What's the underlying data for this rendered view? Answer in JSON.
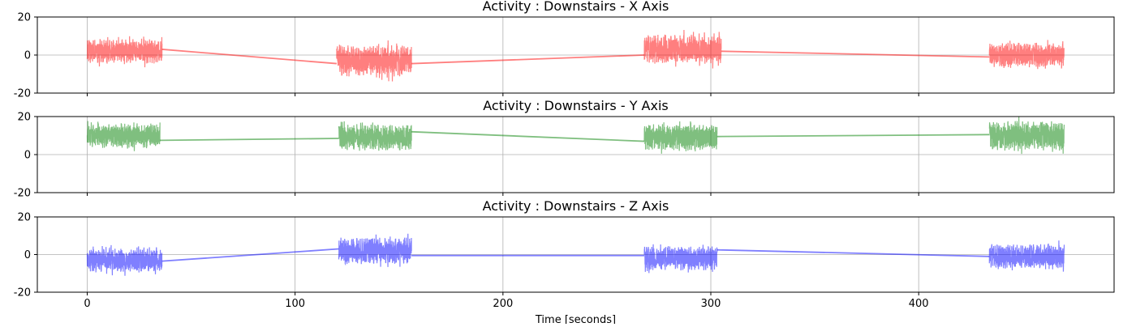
{
  "chart_data": [
    {
      "type": "line",
      "title": "Activity : Downstairs - X Axis",
      "xlabel": "",
      "ylabel": "",
      "xlim": [
        -24,
        494
      ],
      "ylim": [
        -20,
        20
      ],
      "yticks": [
        -20,
        0,
        20
      ],
      "xticks": [
        0,
        100,
        200,
        300,
        400
      ],
      "xtick_labels_visible": false,
      "grid": true,
      "legend": "none",
      "series": [
        {
          "color": "#ff0000",
          "alpha": 0.5,
          "segments": [
            {
              "x": [
                0,
                36
              ],
              "center": 2,
              "amplitude": 10,
              "seed": 11
            },
            {
              "x": [
                120,
                156
              ],
              "center": -3,
              "amplitude": 13,
              "seed": 12
            },
            {
              "x": [
                268,
                305
              ],
              "center": 3,
              "amplitude": 12,
              "seed": 13
            },
            {
              "x": [
                434,
                470
              ],
              "center": 0,
              "amplitude": 10,
              "seed": 14
            }
          ],
          "connectors": [
            {
              "x": [
                36,
                120
              ],
              "y": [
                3,
                -4.5
              ]
            },
            {
              "x": [
                156,
                268
              ],
              "y": [
                -4.5,
                0
              ]
            },
            {
              "x": [
                305,
                434
              ],
              "y": [
                2,
                -1
              ]
            }
          ]
        }
      ]
    },
    {
      "type": "line",
      "title": "Activity : Downstairs - Y Axis",
      "xlabel": "",
      "ylabel": "",
      "xlim": [
        -24,
        494
      ],
      "ylim": [
        -20,
        20
      ],
      "yticks": [
        -20,
        0,
        20
      ],
      "xticks": [
        0,
        100,
        200,
        300,
        400
      ],
      "xtick_labels_visible": false,
      "grid": true,
      "legend": "none",
      "series": [
        {
          "color": "#008000",
          "alpha": 0.5,
          "segments": [
            {
              "x": [
                0,
                35
              ],
              "center": 10,
              "amplitude": 10,
              "seed": 21
            },
            {
              "x": [
                121,
                156
              ],
              "center": 9,
              "amplitude": 11,
              "seed": 22
            },
            {
              "x": [
                268,
                303
              ],
              "center": 9,
              "amplitude": 11,
              "seed": 23
            },
            {
              "x": [
                434,
                470
              ],
              "center": 10,
              "amplitude": 12,
              "seed": 24
            }
          ],
          "connectors": [
            {
              "x": [
                35,
                121
              ],
              "y": [
                7.5,
                8.5
              ]
            },
            {
              "x": [
                156,
                268
              ],
              "y": [
                12,
                7
              ]
            },
            {
              "x": [
                303,
                434
              ],
              "y": [
                9.5,
                10.5
              ]
            }
          ]
        }
      ]
    },
    {
      "type": "line",
      "title": "Activity : Downstairs - Z Axis",
      "xlabel": "Time [seconds]",
      "ylabel": "",
      "xlim": [
        -24,
        494
      ],
      "ylim": [
        -20,
        20
      ],
      "yticks": [
        -20,
        0,
        20
      ],
      "xticks": [
        0,
        100,
        200,
        300,
        400
      ],
      "xtick_labels_visible": true,
      "grid": true,
      "legend": "none",
      "series": [
        {
          "color": "#0000ff",
          "alpha": 0.5,
          "segments": [
            {
              "x": [
                0,
                36
              ],
              "center": -3,
              "amplitude": 10,
              "seed": 31
            },
            {
              "x": [
                121,
                156
              ],
              "center": 2,
              "amplitude": 11,
              "seed": 32
            },
            {
              "x": [
                268,
                303
              ],
              "center": -2,
              "amplitude": 10,
              "seed": 33
            },
            {
              "x": [
                434,
                470
              ],
              "center": -1,
              "amplitude": 10,
              "seed": 34
            }
          ],
          "connectors": [
            {
              "x": [
                36,
                121
              ],
              "y": [
                -3.5,
                3
              ]
            },
            {
              "x": [
                156,
                268
              ],
              "y": [
                -0.5,
                -0.5
              ]
            },
            {
              "x": [
                303,
                434
              ],
              "y": [
                2.5,
                -1
              ]
            }
          ]
        }
      ]
    }
  ]
}
